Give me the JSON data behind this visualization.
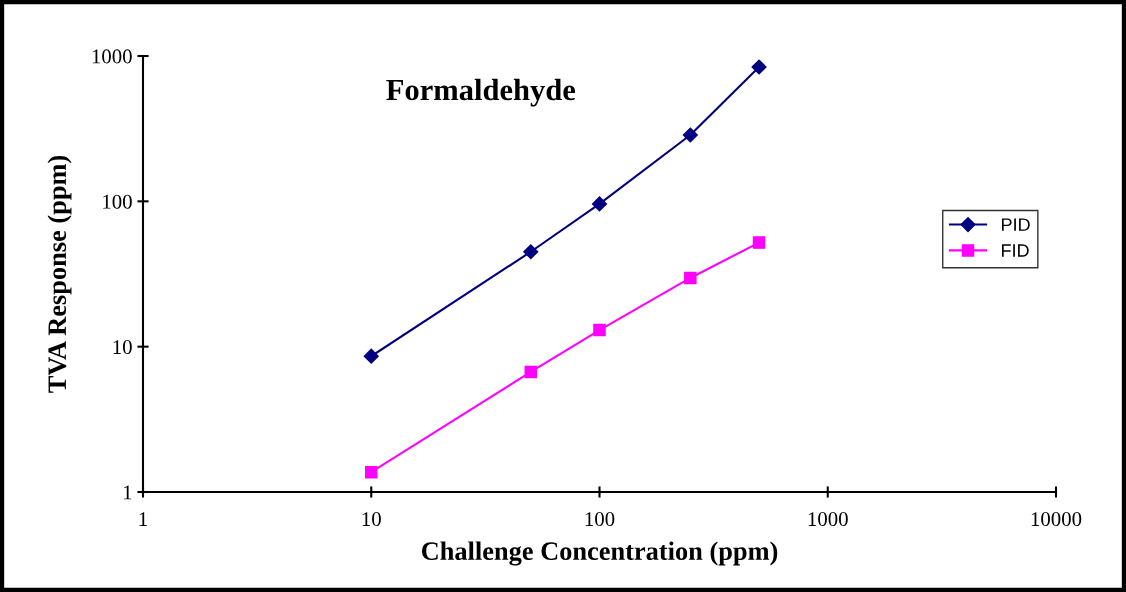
{
  "chart_data": {
    "type": "line",
    "title": "Formaldehyde",
    "xlabel": "Challenge Concentration (ppm)",
    "ylabel": "TVA Response (ppm)",
    "x": [
      10,
      50,
      100,
      250,
      500
    ],
    "series": [
      {
        "name": "PID",
        "color": "#000080",
        "values": [
          8.6,
          45,
          96,
          286,
          840
        ],
        "marker": "diamond"
      },
      {
        "name": "FID",
        "color": "#ff00ff",
        "values": [
          1.37,
          6.7,
          13,
          29.7,
          52
        ],
        "marker": "square"
      }
    ],
    "log": "xy",
    "xlim": [
      1,
      10000
    ],
    "ylim": [
      1,
      1000
    ],
    "xticks": [
      1,
      10,
      100,
      1000,
      10000
    ],
    "yticks": [
      1,
      10,
      100,
      1000
    ],
    "grid": false,
    "legend": "right",
    "line_style": "solid"
  }
}
